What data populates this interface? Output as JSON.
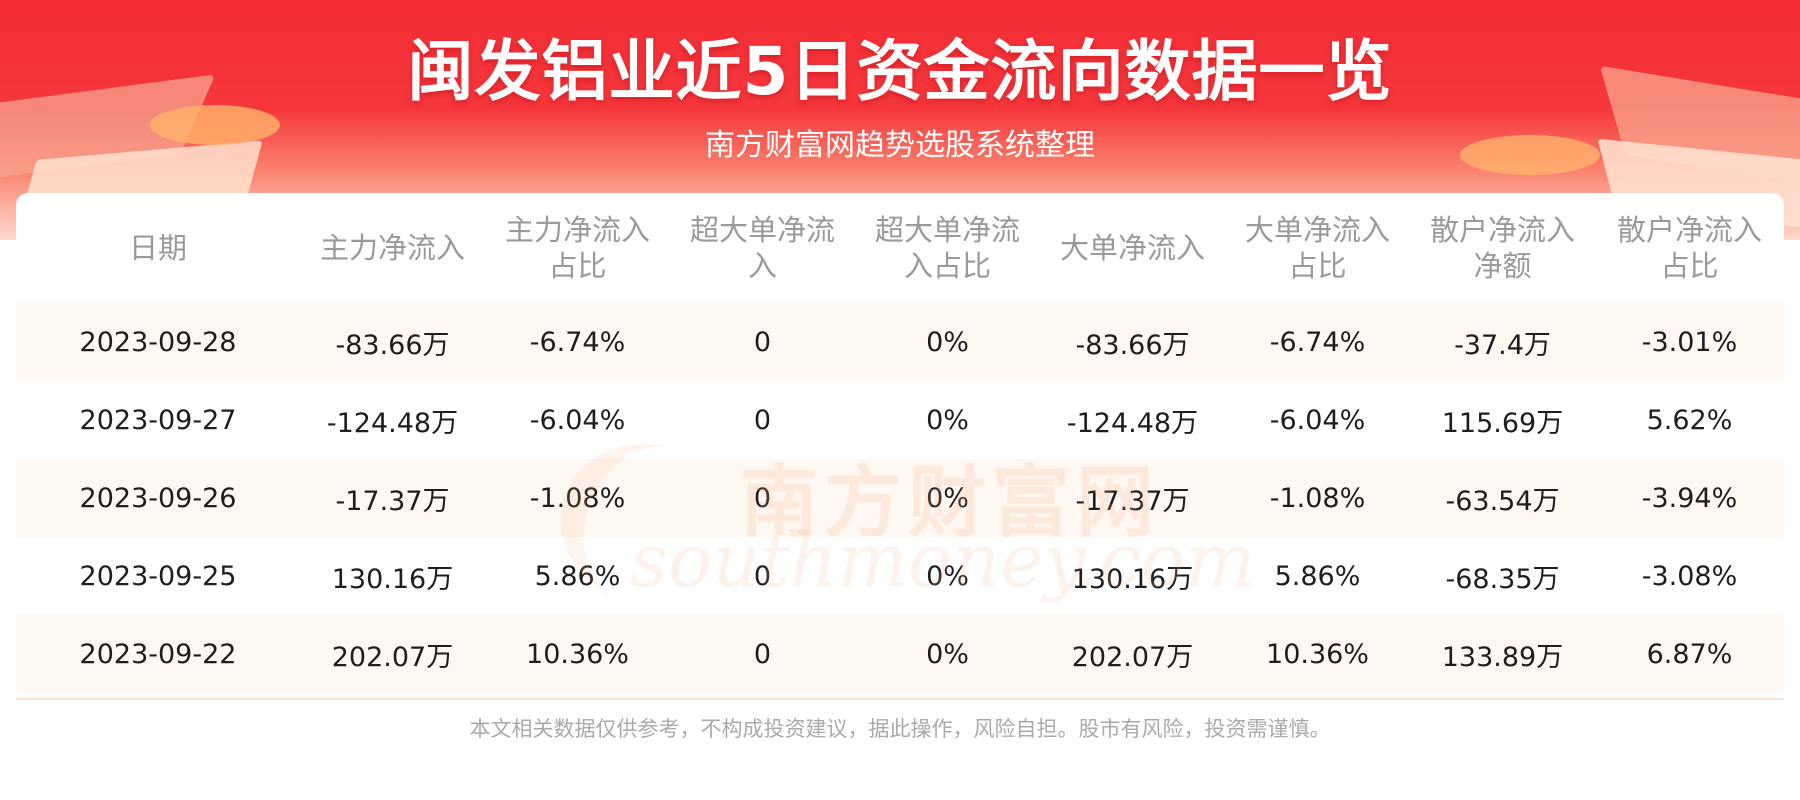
{
  "title": "闽发铝业近5日资金流向数据一览",
  "subtitle": "南方财富网趋势选股系统整理",
  "headers": [
    "日期",
    "主力净流入",
    "主力净流入\n占比",
    "超大单净流\n入",
    "超大单净流\n入占比",
    "大单净流入",
    "大单净流入\n占比",
    "散户净流入\n净额",
    "散户净流入\n占比"
  ],
  "rows": [
    [
      "2023-09-28",
      "-83.66万",
      "-6.74%",
      "0",
      "0%",
      "-83.66万",
      "-6.74%",
      "-37.4万",
      "-3.01%"
    ],
    [
      "2023-09-27",
      "-124.48万",
      "-6.04%",
      "0",
      "0%",
      "-124.48万",
      "-6.04%",
      "115.69万",
      "5.62%"
    ],
    [
      "2023-09-26",
      "-17.37万",
      "-1.08%",
      "0",
      "0%",
      "-17.37万",
      "-1.08%",
      "-63.54万",
      "-3.94%"
    ],
    [
      "2023-09-25",
      "130.16万",
      "5.86%",
      "0",
      "0%",
      "130.16万",
      "5.86%",
      "-68.35万",
      "-3.08%"
    ],
    [
      "2023-09-22",
      "202.07万",
      "10.36%",
      "0",
      "0%",
      "202.07万",
      "10.36%",
      "133.89万",
      "6.87%"
    ]
  ],
  "watermark": {
    "cn": "南方财富网",
    "en": "southmoney.com"
  },
  "disclaimer": "本文相关数据仅供参考，不构成投资建议，据此操作，风险自担。股市有风险，投资需谨慎。",
  "colors": {
    "banner_red": "#f42c35",
    "stripe": "#fff7f1",
    "header_text": "#9a9a9a",
    "body_text": "#1e1e1e"
  }
}
